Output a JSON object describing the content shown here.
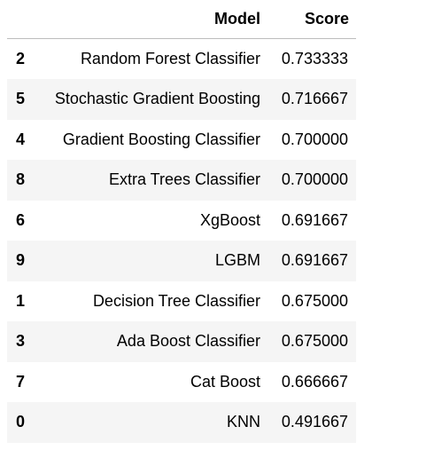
{
  "table": {
    "headers": {
      "index": "",
      "model": "Model",
      "score": "Score"
    },
    "rows": [
      {
        "index": "2",
        "model": "Random Forest Classifier",
        "score": "0.733333"
      },
      {
        "index": "5",
        "model": "Stochastic Gradient Boosting",
        "score": "0.716667"
      },
      {
        "index": "4",
        "model": "Gradient Boosting Classifier",
        "score": "0.700000"
      },
      {
        "index": "8",
        "model": "Extra Trees Classifier",
        "score": "0.700000"
      },
      {
        "index": "6",
        "model": "XgBoost",
        "score": "0.691667"
      },
      {
        "index": "9",
        "model": "LGBM",
        "score": "0.691667"
      },
      {
        "index": "1",
        "model": "Decision Tree Classifier",
        "score": "0.675000"
      },
      {
        "index": "3",
        "model": "Ada Boost Classifier",
        "score": "0.675000"
      },
      {
        "index": "7",
        "model": "Cat Boost",
        "score": "0.666667"
      },
      {
        "index": "0",
        "model": "KNN",
        "score": "0.491667"
      }
    ]
  }
}
